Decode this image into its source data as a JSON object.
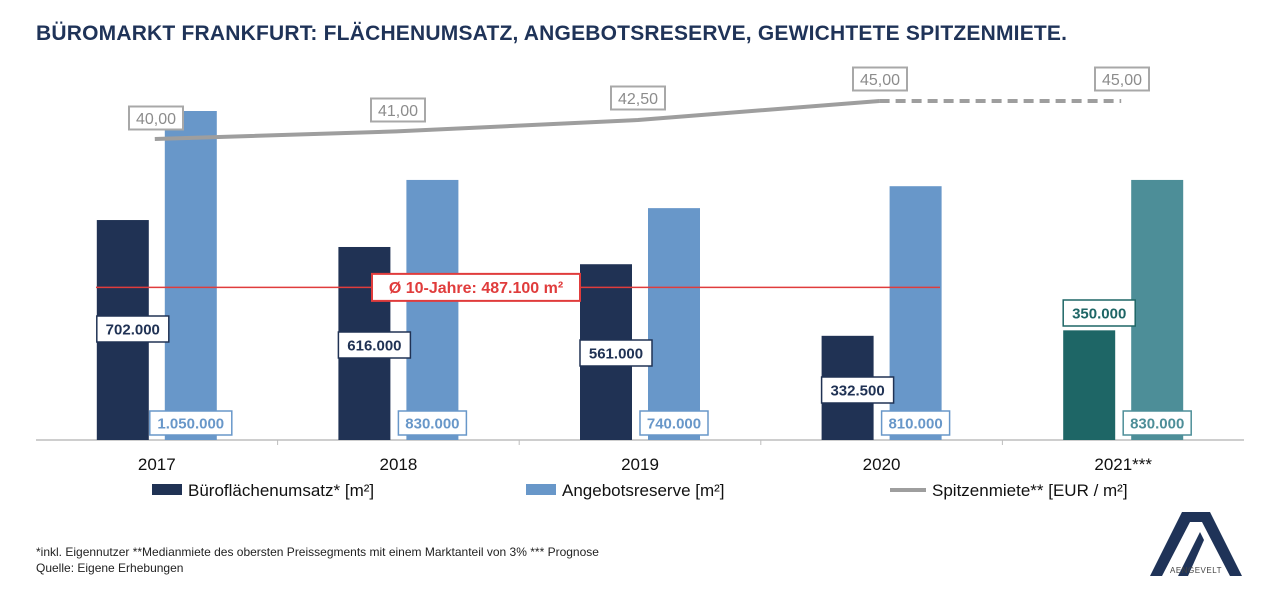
{
  "title": "BÜROMARKT FRANKFURT: FLÄCHENUMSATZ, ANGEBOTSRESERVE, GEWICHTETE SPITZENMIETE.",
  "chart_data": {
    "type": "bar",
    "categories": [
      "2017",
      "2018",
      "2019",
      "2020",
      "2021***"
    ],
    "series": [
      {
        "name": "Büroflächenumsatz* [m²]",
        "type": "bar",
        "values": [
          702000,
          616000,
          561000,
          332500,
          350000
        ],
        "labels": [
          "702.000",
          "616.000",
          "561.000",
          "332.500",
          "350.000"
        ],
        "color": "#203254",
        "forecast_color": "#1e6666"
      },
      {
        "name": "Angebotsreserve [m²]",
        "type": "bar",
        "values": [
          1050000,
          830000,
          740000,
          810000,
          830000
        ],
        "labels": [
          "1.050.000",
          "830.000",
          "740.000",
          "810.000",
          "830.000"
        ],
        "color": "#6897c9",
        "forecast_color": "#4d8e98"
      },
      {
        "name": "Spitzenmiete** [EUR / m²]",
        "type": "line",
        "values": [
          40.0,
          41.0,
          42.5,
          45.0,
          45.0
        ],
        "labels": [
          "40,00",
          "41,00",
          "42,50",
          "45,00",
          "45,00"
        ],
        "color": "#9e9e9e",
        "forecast_dashed": true
      }
    ],
    "reference_line": {
      "value": 487100,
      "label": "Ø 10-Jahre: 487.100 m²",
      "color": "#e03c3c"
    },
    "forecast_index": 4,
    "legend_position": "bottom",
    "grid": false
  },
  "footnotes": [
    "*inkl. Eigennutzer **Medianmiete des obersten Preissegments mit einem Marktanteil von 3% *** Prognose",
    "Quelle: Eigene Erhebungen"
  ],
  "logo": {
    "text": "AENGEVELT",
    "color": "#1f3358"
  }
}
